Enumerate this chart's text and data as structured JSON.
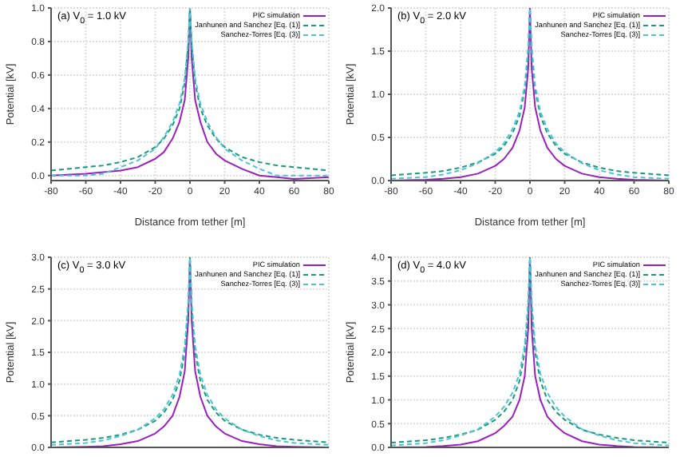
{
  "chart_data": [
    {
      "type": "line",
      "title": "(a) V$_{0}$ = 1.0 kV",
      "xlabel": "Distance from tether [m]",
      "ylabel": "Potential [kV]",
      "x": [
        -80,
        -60,
        -50,
        -40,
        -30,
        -20,
        -15,
        -10,
        -6,
        -3,
        -1,
        0,
        1,
        3,
        6,
        10,
        15,
        20,
        30,
        40,
        50,
        60,
        80
      ],
      "xlim": [
        -80,
        80
      ],
      "xticks": [
        -80,
        -60,
        -40,
        -20,
        0,
        20,
        40,
        60,
        80
      ],
      "ylim": [
        -0.03,
        1.0
      ],
      "yticks": [
        {
          "value": 0,
          "label": "0.0"
        },
        0.2,
        0.4,
        0.6,
        0.8,
        {
          "value": 1,
          "label": "1.0"
        }
      ],
      "grid": true,
      "legend": "top right",
      "marker": "none",
      "series": [
        {
          "name": "PIC simulation",
          "color": "#9b1fbf",
          "line_style": "solid",
          "values": [
            0,
            0.01,
            0.02,
            0.03,
            0.05,
            0.1,
            0.14,
            0.22,
            0.32,
            0.45,
            0.7,
            1.0,
            0.7,
            0.45,
            0.32,
            0.2,
            0.13,
            0.09,
            0.04,
            0.0,
            -0.01,
            -0.02,
            -0.01
          ]
        },
        {
          "name": "Janhunen and Sanchez [Eq. (1)]",
          "color": "#1a9a78",
          "line_style": "dashed",
          "values": [
            0.03,
            0.05,
            0.06,
            0.08,
            0.11,
            0.17,
            0.22,
            0.3,
            0.4,
            0.55,
            0.78,
            1.0,
            0.78,
            0.55,
            0.4,
            0.3,
            0.22,
            0.17,
            0.11,
            0.08,
            0.06,
            0.05,
            0.03
          ]
        },
        {
          "name": "Sanchez-Torres [Eq. (3)]",
          "color": "#4cc3d9",
          "line_style": "dashed",
          "values": [
            0,
            0,
            0.01,
            0.05,
            0.09,
            0.16,
            0.23,
            0.32,
            0.43,
            0.58,
            0.8,
            1.0,
            0.8,
            0.58,
            0.43,
            0.32,
            0.23,
            0.16,
            0.09,
            0.04,
            0,
            0,
            0
          ]
        }
      ]
    },
    {
      "type": "line",
      "title": "(b) V$_{0}$ = 2.0 kV",
      "xlabel": "Distance from tether [m]",
      "ylabel": "Potential [kV]",
      "x": [
        -80,
        -60,
        -50,
        -40,
        -30,
        -20,
        -15,
        -10,
        -6,
        -3,
        -1,
        0,
        1,
        3,
        6,
        10,
        15,
        20,
        30,
        40,
        50,
        60,
        80
      ],
      "xlim": [
        -80,
        80
      ],
      "xticks": [
        -80,
        -60,
        -40,
        -20,
        0,
        20,
        40,
        60,
        80
      ],
      "ylim": [
        0,
        2.0
      ],
      "yticks": [
        {
          "value": 0,
          "label": "0.0"
        },
        0.5,
        {
          "value": 1,
          "label": "1.0"
        },
        1.5,
        {
          "value": 2,
          "label": "2.0"
        }
      ],
      "grid": true,
      "legend": "top right",
      "marker": "none",
      "series": [
        {
          "name": "PIC simulation",
          "color": "#9b1fbf",
          "line_style": "solid",
          "values": [
            0,
            0.01,
            0.02,
            0.04,
            0.08,
            0.17,
            0.25,
            0.38,
            0.58,
            0.85,
            1.3,
            2.0,
            1.3,
            0.85,
            0.58,
            0.38,
            0.25,
            0.17,
            0.08,
            0.04,
            0.02,
            0.01,
            0
          ]
        },
        {
          "name": "Janhunen and Sanchez [Eq. (1)]",
          "color": "#1a9a78",
          "line_style": "dashed",
          "values": [
            0.06,
            0.09,
            0.11,
            0.15,
            0.21,
            0.31,
            0.4,
            0.55,
            0.75,
            1.05,
            1.5,
            2.0,
            1.5,
            1.05,
            0.75,
            0.55,
            0.4,
            0.31,
            0.21,
            0.15,
            0.11,
            0.09,
            0.06
          ]
        },
        {
          "name": "Sanchez-Torres [Eq. (3)]",
          "color": "#4cc3d9",
          "line_style": "dashed",
          "values": [
            0.02,
            0.04,
            0.07,
            0.12,
            0.2,
            0.33,
            0.43,
            0.6,
            0.8,
            1.1,
            1.55,
            2.0,
            1.55,
            1.1,
            0.8,
            0.6,
            0.43,
            0.33,
            0.2,
            0.12,
            0.07,
            0.04,
            0.02
          ]
        }
      ]
    },
    {
      "type": "line",
      "title": "(c) V$_{0}$ = 3.0 kV",
      "ylabel": "Potential [kV]",
      "tick_labels": "y",
      "x": [
        -80,
        -60,
        -50,
        -40,
        -30,
        -20,
        -15,
        -10,
        -6,
        -3,
        -1,
        0,
        1,
        3,
        6,
        10,
        15,
        20,
        30,
        40,
        50,
        60,
        80
      ],
      "xlim": [
        -80,
        80
      ],
      "xticks": [
        -80,
        -60,
        -40,
        -20,
        0,
        20,
        40,
        60,
        80
      ],
      "ylim": [
        0,
        3.0
      ],
      "yticks": [
        {
          "value": 0,
          "label": "0.0"
        },
        0.5,
        {
          "value": 1,
          "label": "1.0"
        },
        1.5,
        {
          "value": 2,
          "label": "2.0"
        },
        2.5,
        {
          "value": 3,
          "label": "3.0"
        }
      ],
      "grid": true,
      "legend": "top right",
      "marker": "none",
      "series": [
        {
          "name": "PIC simulation",
          "color": "#9b1fbf",
          "line_style": "solid",
          "values": [
            0,
            0.01,
            0.02,
            0.05,
            0.1,
            0.22,
            0.33,
            0.5,
            0.8,
            1.2,
            2.0,
            3.0,
            2.0,
            1.2,
            0.8,
            0.5,
            0.33,
            0.22,
            0.1,
            0.05,
            0.02,
            0.01,
            0
          ]
        },
        {
          "name": "Janhunen and Sanchez [Eq. (1)]",
          "color": "#1a9a78",
          "line_style": "dashed",
          "values": [
            0.08,
            0.12,
            0.15,
            0.2,
            0.28,
            0.42,
            0.55,
            0.75,
            1.05,
            1.5,
            2.2,
            3.0,
            2.2,
            1.5,
            1.05,
            0.75,
            0.55,
            0.42,
            0.28,
            0.2,
            0.15,
            0.12,
            0.08
          ]
        },
        {
          "name": "Sanchez-Torres [Eq. (3)]",
          "color": "#4cc3d9",
          "line_style": "dashed",
          "values": [
            0.04,
            0.07,
            0.11,
            0.18,
            0.28,
            0.46,
            0.6,
            0.83,
            1.15,
            1.6,
            2.3,
            3.0,
            2.3,
            1.6,
            1.15,
            0.83,
            0.6,
            0.46,
            0.28,
            0.18,
            0.11,
            0.07,
            0.04
          ]
        }
      ]
    },
    {
      "type": "line",
      "title": "(d) V$_{0}$ = 4.0 kV",
      "ylabel": "Potential [kV]",
      "tick_labels": "y",
      "x": [
        -80,
        -60,
        -50,
        -40,
        -30,
        -20,
        -15,
        -10,
        -6,
        -3,
        -1,
        0,
        1,
        3,
        6,
        10,
        15,
        20,
        30,
        40,
        50,
        60,
        80
      ],
      "xlim": [
        -80,
        80
      ],
      "xticks": [
        -80,
        -60,
        -40,
        -20,
        0,
        20,
        40,
        60,
        80
      ],
      "ylim": [
        0,
        4.0
      ],
      "yticks": [
        {
          "value": 0,
          "label": "0.0"
        },
        0.5,
        {
          "value": 1,
          "label": "1.0"
        },
        1.5,
        {
          "value": 2,
          "label": "2.0"
        },
        2.5,
        {
          "value": 3,
          "label": "3.0"
        },
        3.5,
        {
          "value": 4,
          "label": "4.0"
        }
      ],
      "grid": true,
      "legend": "top right",
      "marker": "none",
      "series": [
        {
          "name": "PIC simulation",
          "color": "#9b1fbf",
          "line_style": "solid",
          "values": [
            0,
            0.01,
            0.03,
            0.06,
            0.13,
            0.3,
            0.45,
            0.65,
            1.0,
            1.5,
            2.5,
            4.0,
            2.5,
            1.5,
            1.0,
            0.65,
            0.45,
            0.3,
            0.13,
            0.06,
            0.03,
            0.01,
            0
          ]
        },
        {
          "name": "Janhunen and Sanchez [Eq. (1)]",
          "color": "#1a9a78",
          "line_style": "dashed",
          "values": [
            0.1,
            0.15,
            0.2,
            0.27,
            0.37,
            0.58,
            0.75,
            1.0,
            1.4,
            2.0,
            2.9,
            4.0,
            2.9,
            2.0,
            1.4,
            1.0,
            0.75,
            0.58,
            0.37,
            0.27,
            0.2,
            0.15,
            0.1
          ]
        },
        {
          "name": "Sanchez-Torres [Eq. (3)]",
          "color": "#4cc3d9",
          "line_style": "dashed",
          "values": [
            0.04,
            0.09,
            0.15,
            0.25,
            0.38,
            0.65,
            0.85,
            1.15,
            1.55,
            2.15,
            3.1,
            4.0,
            3.1,
            2.15,
            1.55,
            1.15,
            0.85,
            0.65,
            0.38,
            0.25,
            0.15,
            0.09,
            0.04
          ]
        }
      ]
    }
  ]
}
